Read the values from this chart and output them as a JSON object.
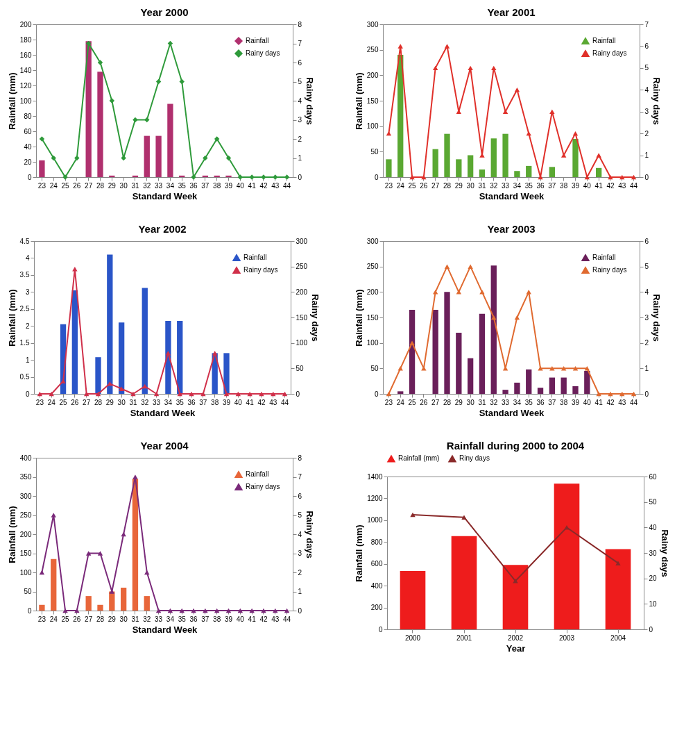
{
  "chart_data": [
    {
      "type": "bar",
      "title": "Year 2000",
      "xlabel": "Standard Week",
      "ylabel": "Rainfall (mm)",
      "y2label": "Rainy days",
      "categories": [
        "23",
        "24",
        "25",
        "26",
        "27",
        "28",
        "29",
        "30",
        "31",
        "32",
        "33",
        "34",
        "35",
        "36",
        "37",
        "38",
        "39",
        "40",
        "41",
        "42",
        "43",
        "44"
      ],
      "ylim": [
        0,
        200
      ],
      "yticks": [
        0,
        20,
        40,
        60,
        80,
        100,
        120,
        140,
        160,
        180,
        200
      ],
      "y2lim": [
        0,
        8
      ],
      "y2ticks": [
        0,
        1,
        2,
        3,
        4,
        5,
        6,
        7,
        8
      ],
      "legend": "top right",
      "marker": "diamond",
      "series": [
        {
          "name": "Rainfall",
          "color": "#b0306e",
          "values": [
            22,
            0,
            0,
            0,
            178,
            138,
            2,
            0,
            2,
            54,
            54,
            96,
            2,
            null,
            2,
            2,
            2,
            0,
            0,
            0,
            0,
            0
          ]
        },
        {
          "name": "Rainy days",
          "type": "line",
          "axis": "y2",
          "color": "#2e9a3a",
          "values": [
            2,
            1,
            0,
            1,
            7,
            6,
            4,
            1,
            3,
            3,
            5,
            7,
            5,
            0,
            1,
            2,
            1,
            0,
            0,
            0,
            0,
            0
          ]
        }
      ]
    },
    {
      "type": "bar",
      "title": "Year 2001",
      "xlabel": "Standard Week",
      "ylabel": "Rainfall (mm)",
      "y2label": "Rainy days",
      "categories": [
        "23",
        "24",
        "25",
        "26",
        "27",
        "28",
        "29",
        "30",
        "31",
        "32",
        "33",
        "34",
        "35",
        "36",
        "37",
        "38",
        "39",
        "40",
        "41",
        "42",
        "43",
        "44"
      ],
      "ylim": [
        0,
        300
      ],
      "yticks": [
        0,
        50,
        100,
        150,
        200,
        250,
        300
      ],
      "y2lim": [
        0,
        7
      ],
      "y2ticks": [
        0,
        1,
        2,
        3,
        4,
        5,
        6,
        7
      ],
      "legend": "top right",
      "marker": "triangle",
      "series": [
        {
          "name": "Rainfall",
          "color": "#5aa832",
          "values": [
            35,
            240,
            0,
            0,
            55,
            85,
            35,
            43,
            15,
            76,
            85,
            12,
            22,
            0,
            20,
            0,
            75,
            0,
            18,
            0,
            0,
            0
          ]
        },
        {
          "name": "Rainy days",
          "type": "line",
          "axis": "y2",
          "color": "#e0302a",
          "values": [
            2,
            6,
            0,
            0,
            5,
            6,
            3,
            5,
            1,
            5,
            3,
            4,
            2,
            0,
            3,
            1,
            2,
            0,
            1,
            0,
            0,
            0
          ]
        }
      ]
    },
    {
      "type": "bar",
      "title": "Year 2002",
      "xlabel": "Standard Week",
      "ylabel": "Rainfall (mm)",
      "y2label": "Rainy days",
      "categories": [
        "23",
        "24",
        "25",
        "26",
        "27",
        "28",
        "29",
        "30",
        "31",
        "32",
        "33",
        "34",
        "35",
        "36",
        "37",
        "38",
        "39",
        "40",
        "41",
        "42",
        "43",
        "44"
      ],
      "ylim": [
        0,
        4.5
      ],
      "yticks": [
        0,
        0.5,
        1,
        1.5,
        2,
        2.5,
        3,
        3.5,
        4,
        4.5
      ],
      "y2lim": [
        0,
        300
      ],
      "y2ticks": [
        0,
        50,
        100,
        150,
        200,
        250,
        300
      ],
      "legend": "top right",
      "marker": "triangle",
      "series": [
        {
          "name": "Rainfall",
          "color": "#2a55c8",
          "values": [
            0,
            0,
            2.05,
            3.05,
            0,
            1.08,
            4.1,
            2.1,
            0,
            3.12,
            0,
            2.15,
            2.15,
            0,
            0,
            1.2,
            1.2,
            0,
            0,
            0,
            0,
            0
          ]
        },
        {
          "name": "Rainy days",
          "type": "line",
          "axis": "y2",
          "color": "#d0304a",
          "values": [
            0,
            0,
            25,
            245,
            0,
            0,
            20,
            10,
            0,
            15,
            0,
            80,
            0,
            0,
            0,
            80,
            0,
            0,
            0,
            0,
            0,
            0
          ]
        }
      ]
    },
    {
      "type": "bar",
      "title": "Year 2003",
      "xlabel": "Standard Week",
      "ylabel": "Rainfall (mm)",
      "y2label": "Rainy days",
      "categories": [
        "23",
        "24",
        "25",
        "26",
        "27",
        "28",
        "29",
        "30",
        "31",
        "32",
        "33",
        "34",
        "35",
        "36",
        "37",
        "38",
        "39",
        "40",
        "41",
        "42",
        "43",
        "44"
      ],
      "ylim": [
        0,
        300
      ],
      "yticks": [
        0,
        50,
        100,
        150,
        200,
        250,
        300
      ],
      "y2lim": [
        0,
        6
      ],
      "y2ticks": [
        0,
        1,
        2,
        3,
        4,
        5,
        6
      ],
      "legend": "top right",
      "marker": "triangle",
      "series": [
        {
          "name": "Rainfall",
          "color": "#6a1f5a",
          "values": [
            0,
            5,
            165,
            0,
            165,
            200,
            120,
            70,
            157,
            252,
            8,
            22,
            48,
            12,
            32,
            32,
            15,
            45,
            0,
            0,
            0,
            0
          ]
        },
        {
          "name": "Rainy days",
          "type": "line",
          "axis": "y2",
          "color": "#e06a30",
          "values": [
            0,
            1,
            2,
            1,
            4,
            5,
            4,
            5,
            4,
            3,
            1,
            3,
            4,
            1,
            1,
            1,
            1,
            1,
            0,
            0,
            0,
            0
          ]
        }
      ]
    },
    {
      "type": "bar",
      "title": "Year 2004",
      "xlabel": "Standard Week",
      "ylabel": "Rainfall (mm)",
      "y2label": "Rainy days",
      "categories": [
        "23",
        "24",
        "25",
        "26",
        "27",
        "28",
        "29",
        "30",
        "31",
        "32",
        "33",
        "34",
        "35",
        "36",
        "37",
        "38",
        "39",
        "40",
        "41",
        "42",
        "43",
        "44"
      ],
      "ylim": [
        0,
        400
      ],
      "yticks": [
        0,
        50,
        100,
        150,
        200,
        250,
        300,
        350,
        400
      ],
      "y2lim": [
        0,
        8
      ],
      "y2ticks": [
        0,
        1,
        2,
        3,
        4,
        5,
        6,
        7,
        8
      ],
      "legend": "top right",
      "marker": "triangle",
      "series": [
        {
          "name": "Rainfall",
          "color": "#e8663a",
          "values": [
            15,
            135,
            0,
            0,
            38,
            15,
            50,
            60,
            345,
            38,
            0,
            0,
            0,
            0,
            0,
            0,
            0,
            0,
            0,
            0,
            0,
            0
          ]
        },
        {
          "name": "Rainy days",
          "type": "line",
          "axis": "y2",
          "color": "#7a2a7a",
          "values": [
            2,
            5,
            0,
            0,
            3,
            3,
            1,
            4,
            7,
            2,
            0,
            0,
            0,
            0,
            0,
            0,
            0,
            0,
            0,
            0,
            0,
            0
          ]
        }
      ]
    },
    {
      "type": "bar",
      "title": "Rainfall during 2000 to 2004",
      "xlabel": "Year",
      "ylabel": "Rainfall (mm)",
      "y2label": "Rainy days",
      "categories": [
        "2000",
        "2001",
        "2002",
        "2003",
        "2004"
      ],
      "ylim": [
        0,
        1400
      ],
      "yticks": [
        0,
        200,
        400,
        600,
        800,
        1000,
        1200,
        1400
      ],
      "y2lim": [
        0,
        60
      ],
      "y2ticks": [
        0,
        10,
        20,
        30,
        40,
        50,
        60
      ],
      "legend": "top",
      "marker": "triangle",
      "series": [
        {
          "name": "Rainfall (mm)",
          "color": "#ee1c1c",
          "values": [
            535,
            855,
            590,
            1335,
            735
          ]
        },
        {
          "name": "Riny days",
          "type": "line",
          "axis": "y2",
          "color": "#8a2a2a",
          "values": [
            45,
            44,
            19,
            40,
            26
          ]
        }
      ]
    }
  ]
}
